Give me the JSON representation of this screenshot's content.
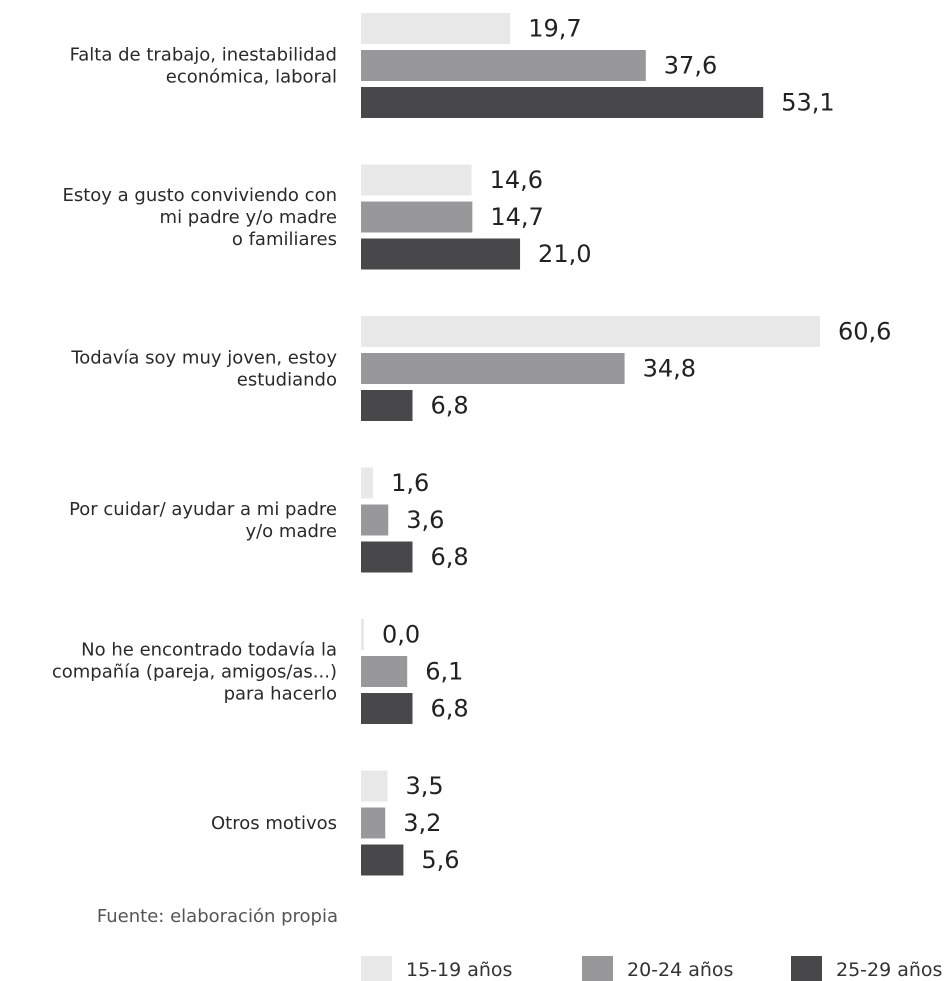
{
  "chart_data": {
    "type": "bar",
    "orientation": "horizontal",
    "categories": [
      [
        "Falta de trabajo, inestabilidad",
        "económica, laboral"
      ],
      [
        "Estoy a gusto conviviendo con",
        "mi padre y/o madre",
        "o familiares"
      ],
      [
        "Todavía soy muy joven, estoy",
        "estudiando"
      ],
      [
        "Por cuidar/ ayudar a mi padre",
        "y/o madre"
      ],
      [
        "No he encontrado todavía la",
        "compañía (pareja, amigos/as...)",
        "para hacerlo"
      ],
      [
        "Otros motivos"
      ]
    ],
    "series": [
      {
        "name": "15-19 años",
        "color": "#e8e8e9",
        "values": [
          19.7,
          14.6,
          60.6,
          1.6,
          0.0,
          3.5
        ],
        "labels": [
          "19,7",
          "14,6",
          "60,6",
          "1,6",
          "0,0",
          "3,5"
        ]
      },
      {
        "name": "20-24 años",
        "color": "#98989b",
        "values": [
          37.6,
          14.7,
          34.8,
          3.6,
          6.1,
          3.2
        ],
        "labels": [
          "37,6",
          "14,7",
          "34,8",
          "3,6",
          "6,1",
          "3,2"
        ]
      },
      {
        "name": "25-29 años",
        "color": "#48484a",
        "values": [
          53.1,
          21.0,
          6.8,
          6.8,
          6.8,
          5.6
        ],
        "labels": [
          "53,1",
          "21,0",
          "6,8",
          "6,8",
          "6,8",
          "5,6"
        ]
      }
    ],
    "xlim": [
      0,
      60.6
    ],
    "grid": false,
    "legend": "bottom"
  },
  "source": "Fuente: elaboración propia"
}
